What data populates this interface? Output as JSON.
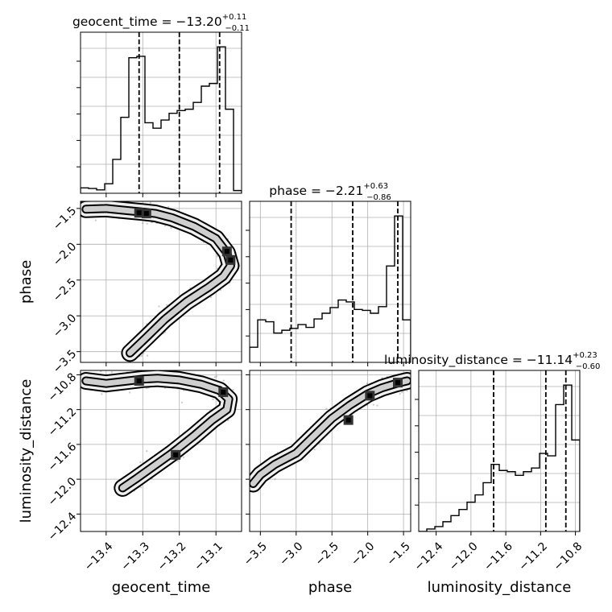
{
  "chart_data": {
    "type": "corner",
    "parameters": [
      "geocent_time",
      "phase",
      "luminosity_distance"
    ],
    "ranges": {
      "geocent_time": [
        -13.47,
        -13.03
      ],
      "phase": [
        -3.65,
        -1.4
      ],
      "luminosity_distance": [
        -12.6,
        -10.75
      ]
    },
    "titles": {
      "geocent_time": {
        "text": "geocent_time = −13.20",
        "plus": "+0.11",
        "minus": "−0.11"
      },
      "phase": {
        "text": "phase = −2.21",
        "plus": "+0.63",
        "minus": "−0.86"
      },
      "luminosity_distance": {
        "text": "luminosity_distance = −11.14",
        "plus": "+0.23",
        "minus": "−0.60"
      }
    },
    "ticks": {
      "geocent_time": {
        "values": [
          -13.4,
          -13.3,
          -13.2,
          -13.1
        ],
        "labels": [
          "−13.4",
          "−13.3",
          "−13.2",
          "−13.1"
        ]
      },
      "phase": {
        "values": [
          -3.5,
          -3.0,
          -2.5,
          -2.0,
          -1.5
        ],
        "labels": [
          "−3.5",
          "−3.0",
          "−2.5",
          "−2.0",
          "−1.5"
        ]
      },
      "luminosity_distance": {
        "values": [
          -12.4,
          -12.0,
          -11.6,
          -11.2,
          -10.8
        ],
        "labels": [
          "−12.4",
          "−12.0",
          "−11.6",
          "−11.2",
          "−10.8"
        ]
      }
    },
    "quantiles": {
      "geocent_time": [
        -13.31,
        -13.2,
        -13.09
      ],
      "phase": [
        -3.07,
        -2.21,
        -1.58
      ],
      "luminosity_distance": [
        -11.74,
        -11.14,
        -10.91
      ]
    },
    "histograms": {
      "geocent_time": {
        "edges": [
          -13.47,
          -13.448,
          -13.426,
          -13.404,
          -13.382,
          -13.36,
          -13.338,
          -13.316,
          -13.294,
          -13.272,
          -13.25,
          -13.228,
          -13.206,
          -13.184,
          -13.162,
          -13.14,
          -13.118,
          -13.096,
          -13.074,
          -13.052,
          -13.03
        ],
        "counts": [
          0.04,
          0.035,
          0.025,
          0.07,
          0.25,
          0.56,
          1.0,
          1.01,
          0.52,
          0.48,
          0.54,
          0.59,
          0.61,
          0.62,
          0.67,
          0.79,
          0.81,
          1.08,
          0.62,
          0.02
        ]
      },
      "phase": {
        "edges": [
          -3.65,
          -3.5375,
          -3.425,
          -3.3125,
          -3.2,
          -3.0875,
          -2.975,
          -2.8625,
          -2.75,
          -2.6375,
          -2.525,
          -2.4125,
          -2.3,
          -2.1875,
          -2.075,
          -1.9625,
          -1.85,
          -1.7375,
          -1.625,
          -1.5125,
          -1.4
        ],
        "counts": [
          0.16,
          0.45,
          0.43,
          0.31,
          0.34,
          0.36,
          0.4,
          0.37,
          0.46,
          0.52,
          0.58,
          0.66,
          0.64,
          0.56,
          0.55,
          0.52,
          0.59,
          1.02,
          1.55,
          0.45
        ]
      },
      "luminosity_distance": {
        "edges": [
          -12.6,
          -12.5075,
          -12.415,
          -12.3225,
          -12.23,
          -12.1375,
          -12.045,
          -11.9525,
          -11.86,
          -11.7675,
          -11.675,
          -11.5825,
          -11.49,
          -11.3975,
          -11.305,
          -11.2125,
          -11.12,
          -11.0275,
          -10.935,
          -10.8425,
          -10.75
        ],
        "counts": [
          0.0,
          0.02,
          0.04,
          0.08,
          0.13,
          0.18,
          0.24,
          0.3,
          0.4,
          0.55,
          0.5,
          0.49,
          0.46,
          0.49,
          0.52,
          0.64,
          0.62,
          1.04,
          1.2,
          0.75
        ]
      }
    },
    "joint": {
      "phase_vs_geocent_time": {
        "ridge": [
          [
            -13.455,
            -1.51
          ],
          [
            -13.4,
            -1.5
          ],
          [
            -13.34,
            -1.53
          ],
          [
            -13.3,
            -1.55
          ],
          [
            -13.265,
            -1.57
          ],
          [
            -13.22,
            -1.63
          ],
          [
            -13.16,
            -1.75
          ],
          [
            -13.1,
            -1.92
          ],
          [
            -13.07,
            -2.12
          ],
          [
            -13.06,
            -2.3
          ],
          [
            -13.08,
            -2.45
          ],
          [
            -13.12,
            -2.6
          ],
          [
            -13.18,
            -2.8
          ],
          [
            -13.24,
            -3.05
          ],
          [
            -13.29,
            -3.3
          ],
          [
            -13.335,
            -3.52
          ]
        ],
        "peaks": [
          [
            -13.31,
            -1.56
          ],
          [
            -13.29,
            -1.57
          ],
          [
            -13.06,
            -2.22
          ],
          [
            -13.07,
            -2.1
          ]
        ]
      },
      "luminosity_distance_vs_geocent_time": {
        "ridge": [
          [
            -13.455,
            -10.87
          ],
          [
            -13.4,
            -10.9
          ],
          [
            -13.34,
            -10.87
          ],
          [
            -13.3,
            -10.85
          ],
          [
            -13.26,
            -10.84
          ],
          [
            -13.2,
            -10.86
          ],
          [
            -13.14,
            -10.91
          ],
          [
            -13.09,
            -10.98
          ],
          [
            -13.065,
            -11.08
          ],
          [
            -13.07,
            -11.2
          ],
          [
            -13.11,
            -11.32
          ],
          [
            -13.16,
            -11.5
          ],
          [
            -13.22,
            -11.7
          ],
          [
            -13.27,
            -11.85
          ],
          [
            -13.32,
            -12.0
          ],
          [
            -13.355,
            -12.1
          ]
        ],
        "peaks": [
          [
            -13.31,
            -10.87
          ],
          [
            -13.08,
            -11.0
          ],
          [
            -13.21,
            -11.72
          ]
        ]
      },
      "luminosity_distance_vs_phase": {
        "ridge": [
          [
            -3.6,
            -12.05
          ],
          [
            -3.5,
            -11.95
          ],
          [
            -3.3,
            -11.83
          ],
          [
            -3.0,
            -11.7
          ],
          [
            -2.75,
            -11.5
          ],
          [
            -2.5,
            -11.3
          ],
          [
            -2.25,
            -11.15
          ],
          [
            -2.0,
            -11.02
          ],
          [
            -1.8,
            -10.95
          ],
          [
            -1.6,
            -10.9
          ],
          [
            -1.45,
            -10.87
          ]
        ],
        "peaks": [
          [
            -2.27,
            -11.32
          ],
          [
            -1.58,
            -10.89
          ],
          [
            -1.97,
            -11.04
          ]
        ]
      }
    }
  }
}
